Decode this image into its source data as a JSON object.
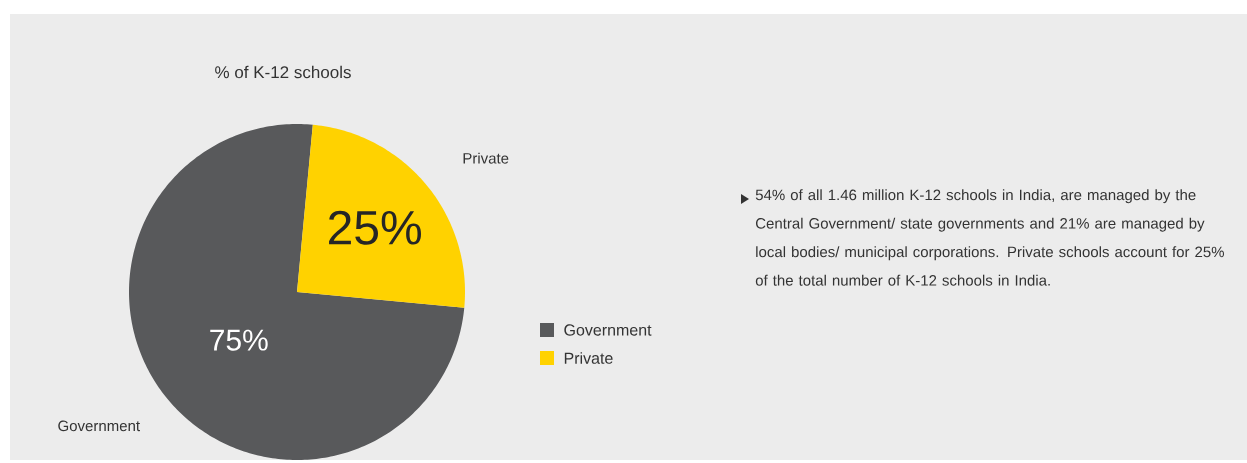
{
  "chart_data": {
    "type": "pie",
    "title": "% of K-12 schools",
    "categories": [
      "Government",
      "Private"
    ],
    "values": [
      75,
      25
    ],
    "colors": [
      "#58595b",
      "#ffd200"
    ],
    "value_labels": [
      "75%",
      "25%"
    ],
    "legend": "right",
    "annotations": [
      "54% of all 1.46 million K-12 schools in India, are managed by the Central Government/ state governments and 21% are managed by local bodies/ municipal corporations. Private schools account for 25% of the total number of K-12 schools in India."
    ]
  }
}
